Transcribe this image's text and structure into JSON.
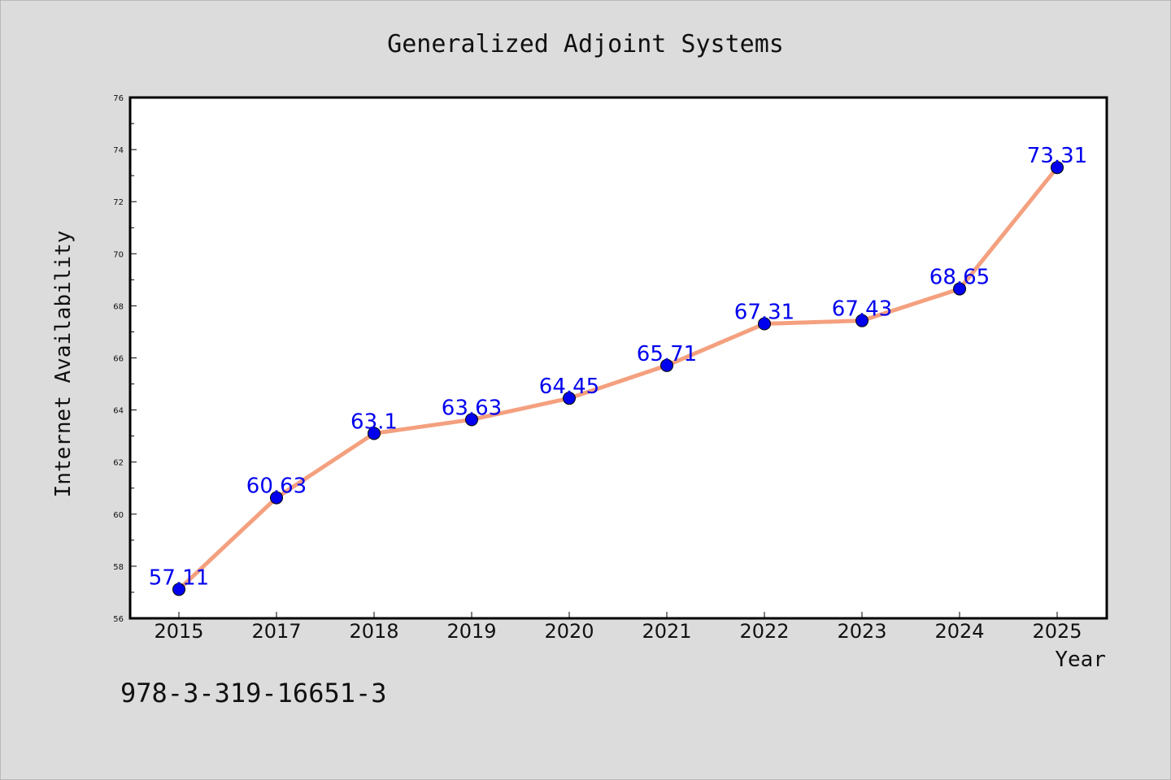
{
  "chart_data": {
    "type": "line",
    "title": "Generalized Adjoint Systems",
    "xlabel": "Year",
    "ylabel": "Internet Availability",
    "categories": [
      "2015",
      "2017",
      "2018",
      "2019",
      "2020",
      "2021",
      "2022",
      "2023",
      "2024",
      "2025"
    ],
    "values": [
      57.11,
      60.63,
      63.1,
      63.63,
      64.45,
      65.71,
      67.31,
      67.43,
      68.65,
      73.31
    ],
    "data_labels": [
      "57.11",
      "60.63",
      "63.1",
      "63.63",
      "64.45",
      "65.71",
      "67.31",
      "67.43",
      "68.65",
      "73.31"
    ],
    "ylim": [
      56,
      76
    ],
    "yticks": [
      56,
      58,
      60,
      62,
      64,
      66,
      68,
      70,
      72,
      74,
      76
    ],
    "grid": false,
    "line_color": "#f4a07f",
    "marker_color": "#0000ee",
    "label_color": "#0000ee",
    "background_color": "#dcdcdc",
    "plot_background": "#ffffff"
  },
  "footnote": "978-3-319-16651-3"
}
